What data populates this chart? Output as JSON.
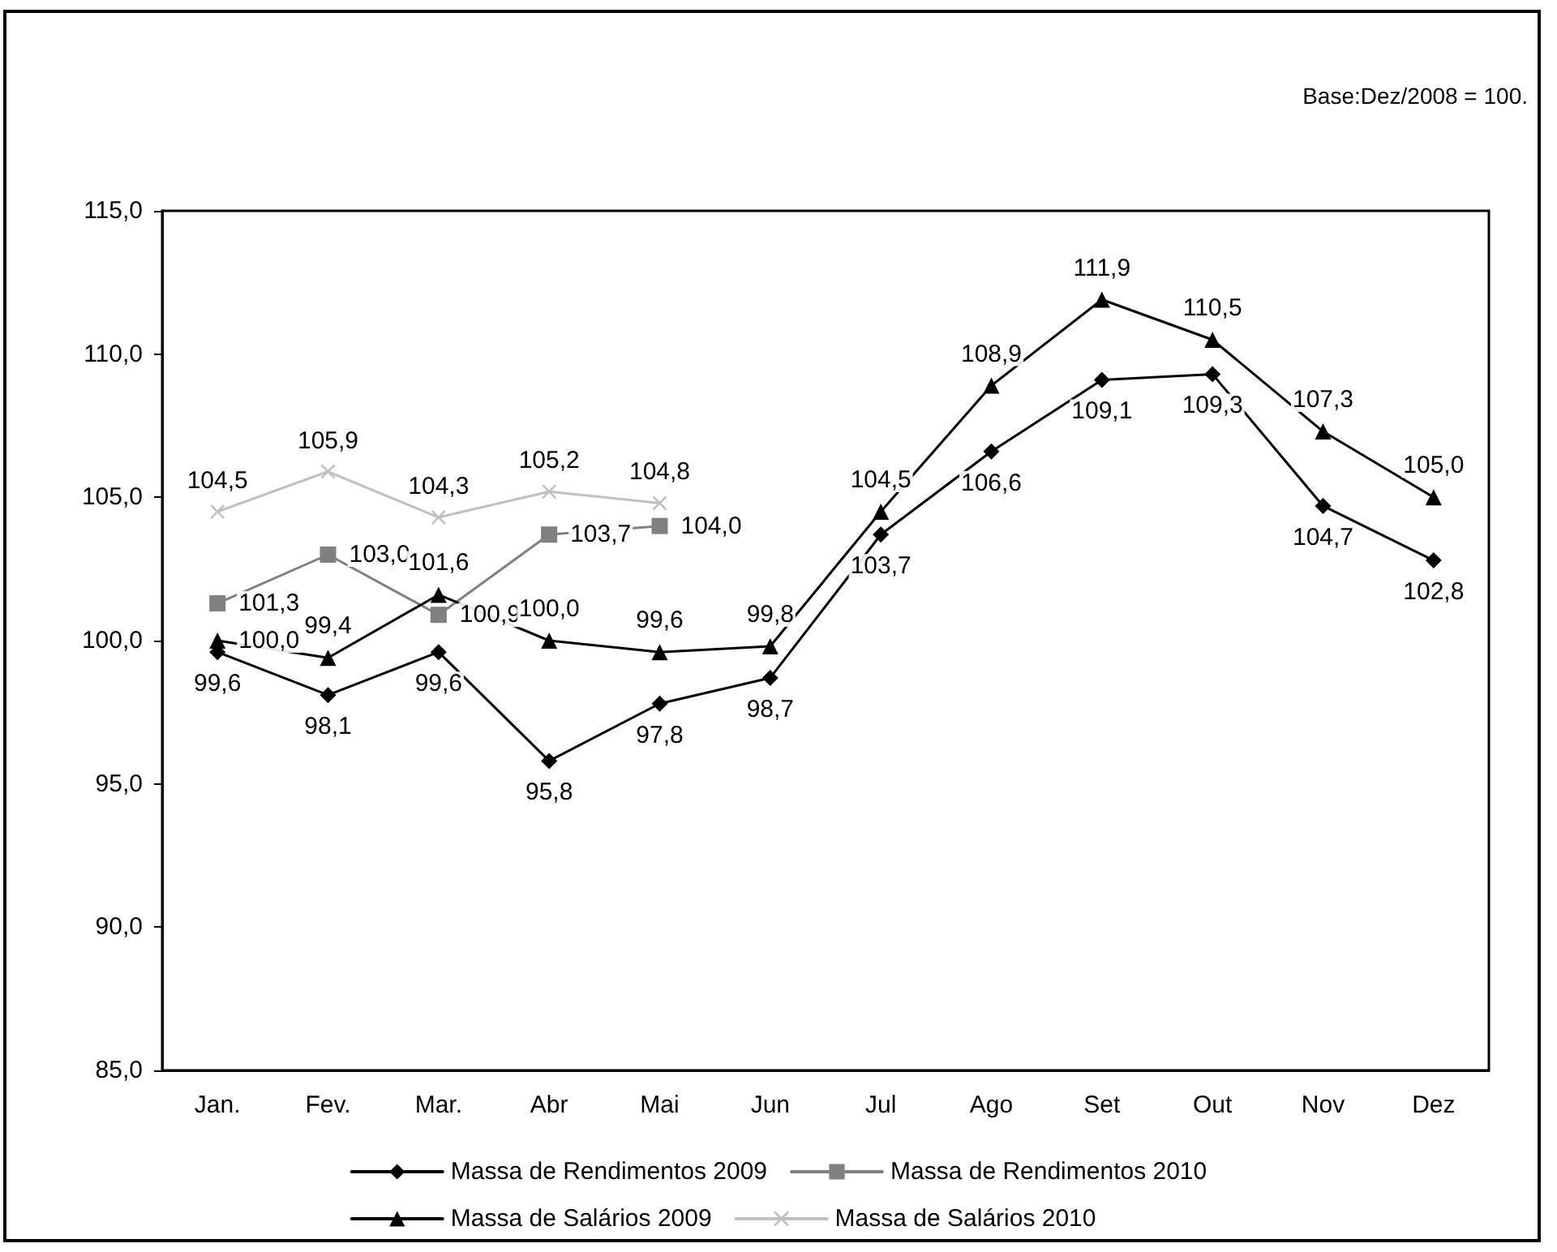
{
  "chart_data": {
    "type": "line",
    "annotations": [
      "Base:Dez/2008 = 100."
    ],
    "categories": [
      "Jan.",
      "Fev.",
      "Mar.",
      "Abr",
      "Mai",
      "Jun",
      "Jul",
      "Ago",
      "Set",
      "Out",
      "Nov",
      "Dez"
    ],
    "series": [
      {
        "name": "Massa de Rendimentos 2009",
        "color": "#000000",
        "marker": "diamond",
        "values": [
          99.6,
          98.1,
          99.6,
          95.8,
          97.8,
          98.7,
          103.7,
          106.6,
          109.1,
          109.3,
          104.7,
          102.8
        ],
        "value_labels": [
          "99,6",
          "98,1",
          "99,6",
          "95,8",
          "97,8",
          "98,7",
          "103,7",
          "106,6",
          "109,1",
          "109,3",
          "104,7",
          "102,8"
        ]
      },
      {
        "name": "Massa de Rendimentos 2010",
        "color": "#808080",
        "marker": "square",
        "values": [
          101.3,
          103.0,
          100.9,
          103.7,
          104.0,
          null,
          null,
          null,
          null,
          null,
          null,
          null
        ],
        "value_labels": [
          "101,3",
          "103,0",
          "100,9",
          "103,7",
          "104,0",
          null,
          null,
          null,
          null,
          null,
          null,
          null
        ]
      },
      {
        "name": "Massa de Salários 2009",
        "color": "#000000",
        "marker": "triangle",
        "values": [
          100.0,
          99.4,
          101.6,
          100.0,
          99.6,
          99.8,
          104.5,
          108.9,
          111.9,
          110.5,
          107.3,
          105.0
        ],
        "value_labels": [
          "100,0",
          "99,4",
          "101,6",
          "100,0",
          "99,6",
          "99,8",
          "104,5",
          "108,9",
          "111,9",
          "110,5",
          "107,3",
          "105,0"
        ]
      },
      {
        "name": "Massa de Salários 2010",
        "color": "#c0c0c0",
        "marker": "cross",
        "values": [
          104.5,
          105.9,
          104.3,
          105.2,
          104.8,
          null,
          null,
          null,
          null,
          null,
          null,
          null
        ],
        "value_labels": [
          "104,5",
          "105,9",
          "104,3",
          "105,2",
          "104,8",
          null,
          null,
          null,
          null,
          null,
          null,
          null
        ]
      }
    ],
    "ylim": [
      85,
      115
    ],
    "yticks": [
      {
        "value": 85,
        "label": "85,0"
      },
      {
        "value": 90,
        "label": "90,0"
      },
      {
        "value": 95,
        "label": "95,0"
      },
      {
        "value": 100,
        "label": "100,0"
      },
      {
        "value": 105,
        "label": "105,0"
      },
      {
        "value": 110,
        "label": "110,0"
      },
      {
        "value": 115,
        "label": "115,0"
      }
    ],
    "grid": false,
    "legend": "bottom",
    "line_style": "solid"
  }
}
